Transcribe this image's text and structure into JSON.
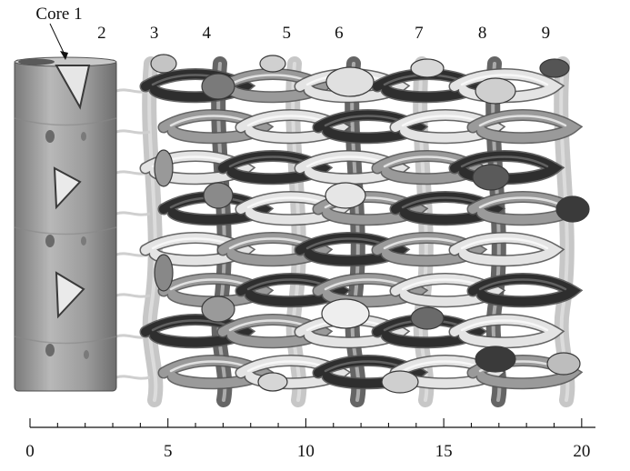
{
  "figure": {
    "core_labels": [
      "Core 1",
      "2",
      "3",
      "4",
      "5",
      "6",
      "7",
      "8",
      "9"
    ],
    "core_positions": [
      1.8,
      2.7,
      4.6,
      6.5,
      9.4,
      11.3,
      14.2,
      16.5,
      18.8
    ],
    "axis": {
      "min": 0,
      "max": 20.5,
      "ticks": [
        0,
        5,
        10,
        15,
        20
      ],
      "tick_labels": [
        "0",
        "5",
        "10",
        "15",
        "20"
      ],
      "minor_step": 1
    },
    "colors": {
      "light": "#d8d8d8",
      "mid": "#9a9a9a",
      "dark": "#3a3a3a",
      "cylinder": "#9c9c9c"
    }
  }
}
